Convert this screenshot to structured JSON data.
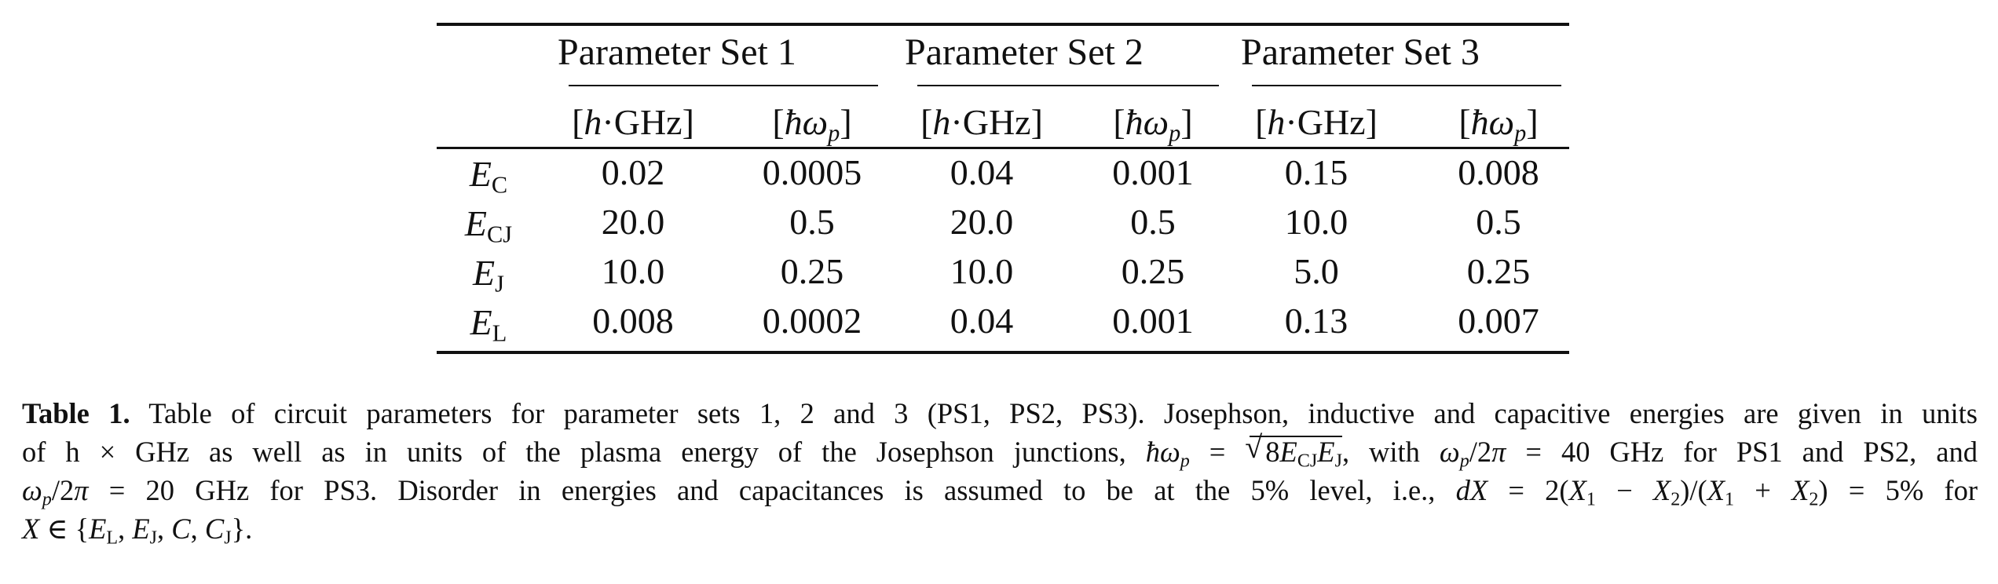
{
  "table": {
    "group_headers": [
      "Parameter Set 1",
      "Parameter Set 2",
      "Parameter Set 3"
    ],
    "unit_headers": [
      [
        "[h·GHz]",
        "[ħω_p]"
      ],
      [
        "[h·GHz]",
        "[ħω_p]"
      ],
      [
        "[h·GHz]",
        "[ħω_p]"
      ]
    ],
    "rows": [
      {
        "label": "E_C",
        "values": [
          "0.02",
          "0.0005",
          "0.04",
          "0.001",
          "0.15",
          "0.008"
        ]
      },
      {
        "label": "E_CJ",
        "values": [
          "20.0",
          "0.5",
          "20.0",
          "0.5",
          "10.0",
          "0.5"
        ]
      },
      {
        "label": "E_J",
        "values": [
          "10.0",
          "0.25",
          "10.0",
          "0.25",
          "5.0",
          "0.25"
        ]
      },
      {
        "label": "E_L",
        "values": [
          "0.008",
          "0.0002",
          "0.04",
          "0.001",
          "0.13",
          "0.007"
        ]
      }
    ]
  },
  "caption": {
    "label": "Table 1.",
    "line1": "Table of circuit parameters for parameter sets 1, 2 and 3 (PS1, PS2, PS3). Josephson, inductive and capacitive energies are given in units",
    "line2a": "of h × GHz as well as in units of the plasma energy of the Josephson junctions,",
    "line2b": ", with",
    "line2c": "= 40 GHz for PS1 and PS2, and",
    "line3a": "= 20 GHz for PS3.  Disorder in energies and capacitances is assumed to be at the 5% level, i.e.,",
    "line3b": "= 5% for"
  }
}
